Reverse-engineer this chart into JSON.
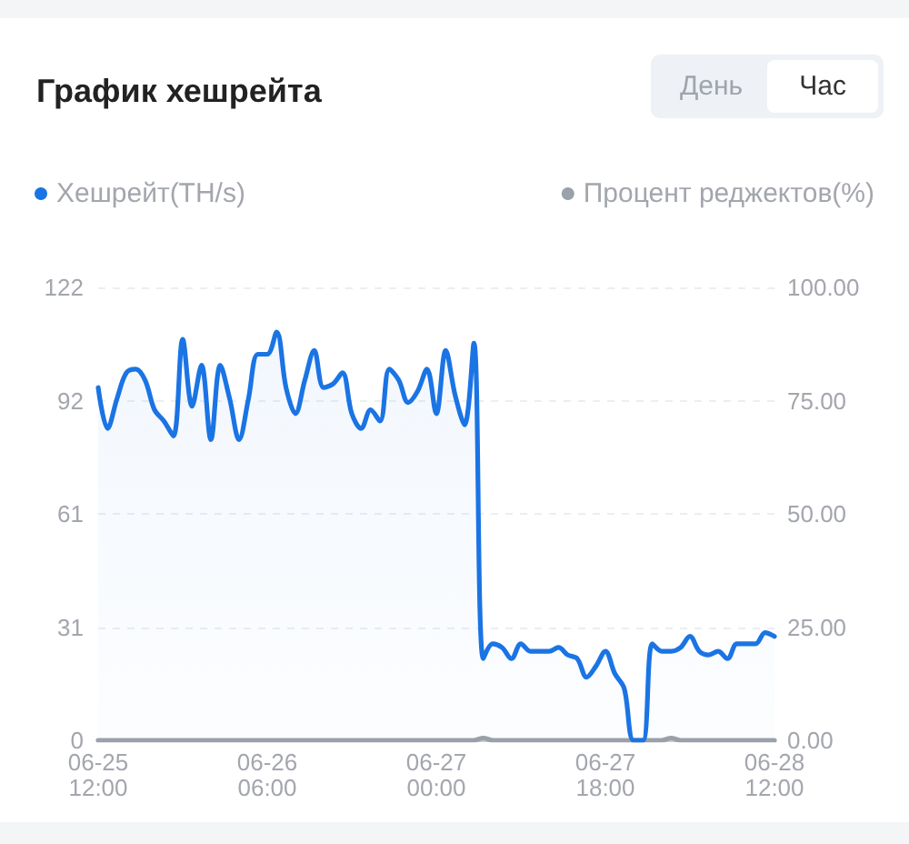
{
  "chart_data": {
    "type": "line",
    "title": "График хешрейта",
    "annotations": [
      "День",
      "Час"
    ],
    "x": [
      "--06-25T12:00",
      "--06-25T13:00",
      "--06-25T14:00",
      "--06-25T15:00",
      "--06-25T16:00",
      "--06-25T17:00",
      "--06-25T18:00",
      "--06-25T19:00",
      "--06-25T20:00",
      "--06-25T21:00",
      "--06-25T22:00",
      "--06-25T23:00",
      "--06-26T00:00",
      "--06-26T01:00",
      "--06-26T02:00",
      "--06-26T03:00",
      "--06-26T04:00",
      "--06-26T05:00",
      "--06-26T06:00",
      "--06-26T07:00",
      "--06-26T08:00",
      "--06-26T09:00",
      "--06-26T10:00",
      "--06-26T11:00",
      "--06-26T12:00",
      "--06-26T13:00",
      "--06-26T14:00",
      "--06-26T15:00",
      "--06-26T16:00",
      "--06-26T17:00",
      "--06-26T18:00",
      "--06-26T19:00",
      "--06-26T20:00",
      "--06-26T21:00",
      "--06-26T22:00",
      "--06-26T23:00",
      "--06-27T00:00",
      "--06-27T01:00",
      "--06-27T02:00",
      "--06-27T03:00",
      "--06-27T04:00",
      "--06-27T05:00",
      "--06-27T06:00",
      "--06-27T07:00",
      "--06-27T08:00",
      "--06-27T09:00",
      "--06-27T10:00",
      "--06-27T11:00",
      "--06-27T12:00",
      "--06-27T13:00",
      "--06-27T14:00",
      "--06-27T15:00",
      "--06-27T16:00",
      "--06-27T17:00",
      "--06-27T18:00",
      "--06-27T19:00",
      "--06-27T20:00",
      "--06-27T21:00",
      "--06-27T22:00",
      "--06-27T23:00",
      "--06-28T00:00",
      "--06-28T01:00",
      "--06-28T02:00",
      "--06-28T03:00",
      "--06-28T04:00",
      "--06-28T05:00",
      "--06-28T06:00",
      "--06-28T07:00",
      "--06-28T08:00",
      "--06-28T09:00",
      "--06-28T10:00",
      "--06-28T11:00",
      "--06-28T12:00"
    ],
    "xlim": [
      "--06-25T12:00",
      "--06-28T12:00"
    ],
    "xticks": [
      {
        "value": "--06-25T12:00",
        "label": "06-25\n12:00"
      },
      {
        "value": "--06-26T06:00",
        "label": "06-26\n06:00"
      },
      {
        "value": "--06-27T00:00",
        "label": "06-27\n00:00"
      },
      {
        "value": "--06-27T18:00",
        "label": "06-27\n18:00"
      },
      {
        "value": "--06-28T12:00",
        "label": "06-28\n12:00"
      }
    ],
    "ylim": [
      0,
      122
    ],
    "yticks": [
      0,
      {
        "value": 30.5,
        "label": "31"
      },
      61,
      {
        "value": 91.5,
        "label": "92"
      },
      122
    ],
    "y2lim": [
      0,
      100
    ],
    "y2ticks": [
      {
        "value": 0,
        "label": "0.00"
      },
      {
        "value": 25,
        "label": "25.00"
      },
      {
        "value": 50,
        "label": "50.00"
      },
      {
        "value": 75,
        "label": "75.00"
      },
      {
        "value": 100,
        "label": "100.00"
      }
    ],
    "series": [
      {
        "name": "Хешрейт(TH/s)",
        "type": "area",
        "color": "#1b74e4",
        "values": [
          95,
          84,
          92,
          99,
          100,
          97,
          89,
          86,
          82,
          108,
          90,
          101,
          81,
          101,
          92,
          81,
          92,
          104,
          104,
          110,
          95,
          88,
          97,
          105,
          95,
          96,
          99,
          88,
          84,
          89,
          86,
          100,
          97,
          91,
          94,
          100,
          88,
          105,
          93,
          85,
          107,
          22,
          26,
          25,
          22,
          26,
          24,
          24,
          24,
          25,
          23,
          22,
          17,
          20,
          24,
          18,
          14,
          0,
          0,
          26,
          24,
          24,
          25,
          28,
          24,
          23,
          24,
          22,
          26,
          26,
          26,
          29,
          28
        ]
      },
      {
        "name": "Процент реджектов(%)",
        "axis": "y2",
        "color": "#9ba1aa",
        "values": [
          0,
          0,
          0,
          0,
          0,
          0,
          0,
          0,
          0,
          0,
          0,
          0,
          0,
          0,
          0,
          0,
          0,
          0,
          0,
          0,
          0,
          0,
          0,
          0,
          0,
          0,
          0,
          0,
          0,
          0,
          0,
          0,
          0,
          0,
          0,
          0,
          0,
          0,
          0,
          0,
          0,
          0.5,
          0,
          0,
          0,
          0,
          0,
          0,
          0,
          0,
          0,
          0,
          0,
          0,
          0,
          0,
          0,
          0,
          0,
          0,
          0,
          0.5,
          0,
          0,
          0,
          0,
          0,
          0,
          0,
          0,
          0,
          0,
          0
        ]
      }
    ],
    "grid": "y",
    "legend": "top",
    "marker": "none",
    "line_style": "solid"
  }
}
